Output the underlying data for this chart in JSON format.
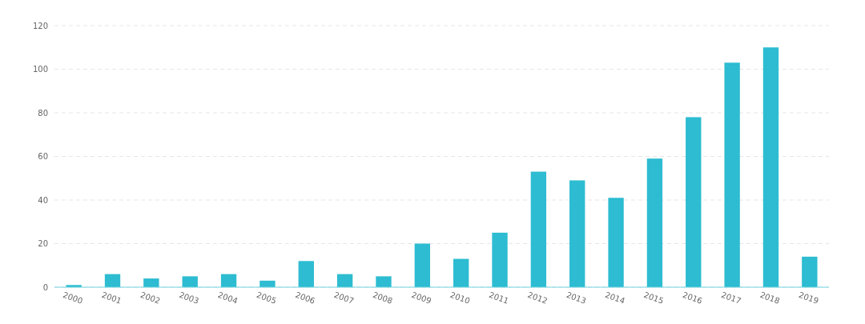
{
  "chart_data": {
    "type": "bar",
    "categories": [
      "2000",
      "2001",
      "2002",
      "2003",
      "2004",
      "2005",
      "2006",
      "2007",
      "2008",
      "2009",
      "2010",
      "2011",
      "2012",
      "2013",
      "2014",
      "2015",
      "2016",
      "2017",
      "2018",
      "2019"
    ],
    "values": [
      1,
      6,
      4,
      5,
      6,
      3,
      12,
      6,
      5,
      20,
      13,
      25,
      53,
      49,
      41,
      59,
      78,
      103,
      110,
      14
    ],
    "color": "#2dbcd1",
    "ylim": [
      0,
      120
    ],
    "yticks": [
      0,
      20,
      40,
      60,
      80,
      100,
      120
    ],
    "grid": "y"
  }
}
